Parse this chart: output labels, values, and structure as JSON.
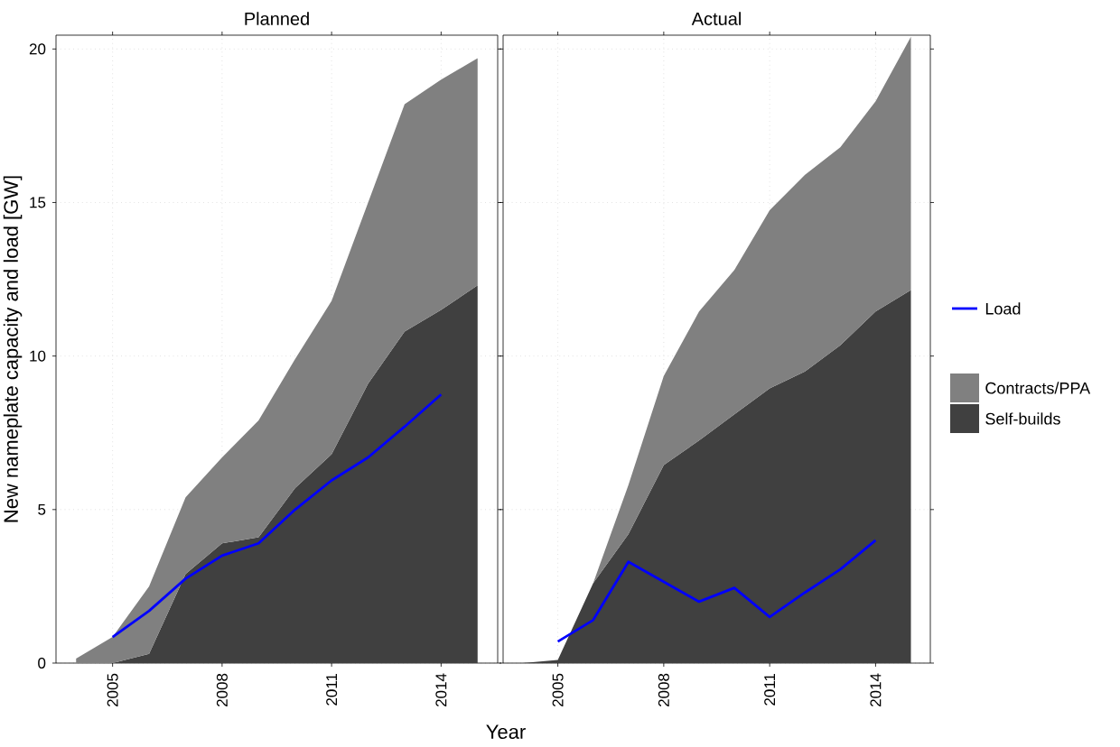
{
  "chart_data": [
    {
      "type": "area",
      "title": "Planned",
      "xlabel": "Year",
      "ylabel": "New nameplate capacity and load [GW]",
      "stacked": true,
      "grid": true,
      "x": [
        2004,
        2005,
        2006,
        2007,
        2008,
        2009,
        2010,
        2011,
        2012,
        2013,
        2014,
        2015
      ],
      "xlim": [
        2003.45,
        2015.55
      ],
      "ylim": [
        0,
        20.45
      ],
      "xticks": [
        2005,
        2008,
        2011,
        2014
      ],
      "yticks": [
        0,
        5,
        10,
        15,
        20
      ],
      "series": [
        {
          "color": "#404040",
          "values": [
            0,
            0,
            0.3,
            2.9,
            3.9,
            4.1,
            5.7,
            6.8,
            9.1,
            10.8,
            11.5,
            12.3
          ]
        },
        {
          "color": "#808080",
          "values": [
            0.15,
            0.85,
            2.2,
            2.5,
            2.8,
            3.8,
            4.2,
            5.0,
            5.9,
            7.4,
            7.5,
            7.4
          ]
        },
        {
          "type": "line",
          "color": "#0000ff",
          "x": [
            2005,
            2006,
            2007,
            2008,
            2009,
            2010,
            2011,
            2012,
            2013,
            2014
          ],
          "values": [
            0.85,
            1.7,
            2.75,
            3.5,
            3.9,
            5.0,
            5.95,
            6.7,
            7.7,
            8.75
          ]
        }
      ]
    },
    {
      "type": "area",
      "title": "Actual",
      "stacked": true,
      "grid": true,
      "legend": "right",
      "tick_labels": "x",
      "x": [
        2004,
        2005,
        2006,
        2007,
        2008,
        2009,
        2010,
        2011,
        2012,
        2013,
        2014,
        2015
      ],
      "xlim": [
        2003.45,
        2015.55
      ],
      "ylim": [
        0,
        20.45
      ],
      "xticks": [
        2005,
        2008,
        2011,
        2014
      ],
      "yticks": [
        0,
        5,
        10,
        15,
        20
      ],
      "series": [
        {
          "name": "Self-builds",
          "color": "#404040",
          "values": [
            0,
            0.1,
            2.6,
            4.2,
            6.45,
            7.25,
            8.1,
            8.95,
            9.5,
            10.35,
            11.45,
            12.15
          ]
        },
        {
          "name": "Contracts/PPA",
          "color": "#808080",
          "values": [
            0,
            0,
            0,
            1.6,
            2.9,
            4.2,
            4.7,
            5.8,
            6.4,
            6.45,
            6.85,
            8.25
          ]
        },
        {
          "name": "Load",
          "type": "line",
          "color": "#0000ff",
          "x": [
            2005,
            2006,
            2007,
            2008,
            2009,
            2010,
            2011,
            2012,
            2013,
            2014
          ],
          "values": [
            0.7,
            1.4,
            3.3,
            2.65,
            2.0,
            2.45,
            1.5,
            2.3,
            3.05,
            4.0
          ]
        }
      ]
    }
  ]
}
